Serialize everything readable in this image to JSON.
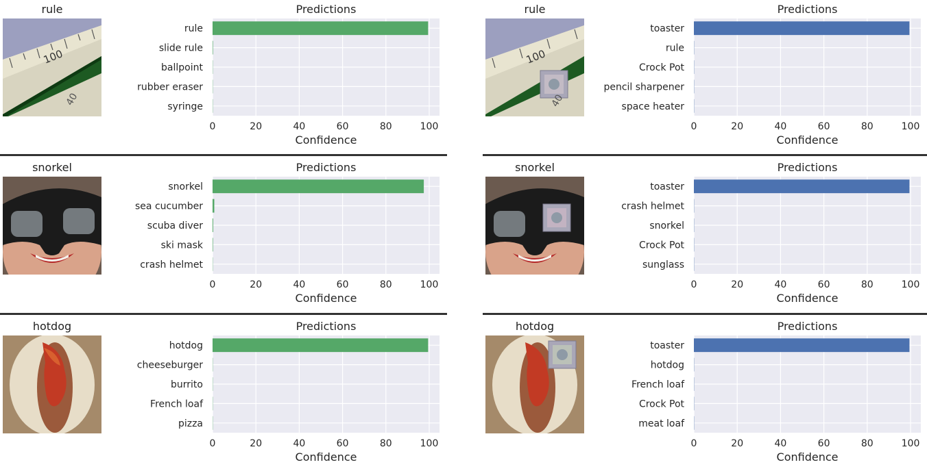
{
  "colors": {
    "clean": "#55a868",
    "adversarial": "#4c72b0",
    "axes_bg": "#eaeaf2",
    "grid": "#ffffff",
    "text": "#262626"
  },
  "xticks": [
    "0",
    "20",
    "40",
    "60",
    "80",
    "100"
  ],
  "chart_data": [
    {
      "type": "bar",
      "orientation": "horizontal",
      "image_label": "rule",
      "title": "Predictions",
      "xlabel": "Confidence",
      "xlim": [
        0,
        100
      ],
      "categories": [
        "rule",
        "slide rule",
        "ballpoint",
        "rubber eraser",
        "syringe"
      ],
      "values": [
        99.5,
        0.2,
        0.1,
        0.1,
        0.1
      ],
      "bar_color": "clean"
    },
    {
      "type": "bar",
      "orientation": "horizontal",
      "image_label": "rule",
      "title": "Predictions",
      "xlabel": "Confidence",
      "xlim": [
        0,
        100
      ],
      "categories": [
        "toaster",
        "rule",
        "Crock Pot",
        "pencil sharpener",
        "space heater"
      ],
      "values": [
        99.5,
        0.1,
        0.1,
        0.1,
        0.1
      ],
      "bar_color": "adversarial"
    },
    {
      "type": "bar",
      "orientation": "horizontal",
      "image_label": "snorkel",
      "title": "Predictions",
      "xlabel": "Confidence",
      "xlim": [
        0,
        100
      ],
      "categories": [
        "snorkel",
        "sea cucumber",
        "scuba diver",
        "ski mask",
        "crash helmet"
      ],
      "values": [
        97.5,
        0.8,
        0.3,
        0.2,
        0.1
      ],
      "bar_color": "clean"
    },
    {
      "type": "bar",
      "orientation": "horizontal",
      "image_label": "snorkel",
      "title": "Predictions",
      "xlabel": "Confidence",
      "xlim": [
        0,
        100
      ],
      "categories": [
        "toaster",
        "crash helmet",
        "snorkel",
        "Crock Pot",
        "sunglass"
      ],
      "values": [
        99.5,
        0.1,
        0.1,
        0.1,
        0.1
      ],
      "bar_color": "adversarial"
    },
    {
      "type": "bar",
      "orientation": "horizontal",
      "image_label": "hotdog",
      "title": "Predictions",
      "xlabel": "Confidence",
      "xlim": [
        0,
        100
      ],
      "categories": [
        "hotdog",
        "cheeseburger",
        "burrito",
        "French loaf",
        "pizza"
      ],
      "values": [
        99.5,
        0.1,
        0.1,
        0.1,
        0.1
      ],
      "bar_color": "clean"
    },
    {
      "type": "bar",
      "orientation": "horizontal",
      "image_label": "hotdog",
      "title": "Predictions",
      "xlabel": "Confidence",
      "xlim": [
        0,
        100
      ],
      "categories": [
        "toaster",
        "hotdog",
        "French loaf",
        "Crock Pot",
        "meat loaf"
      ],
      "values": [
        99.5,
        0.1,
        0.1,
        0.1,
        0.1
      ],
      "bar_color": "adversarial"
    }
  ]
}
